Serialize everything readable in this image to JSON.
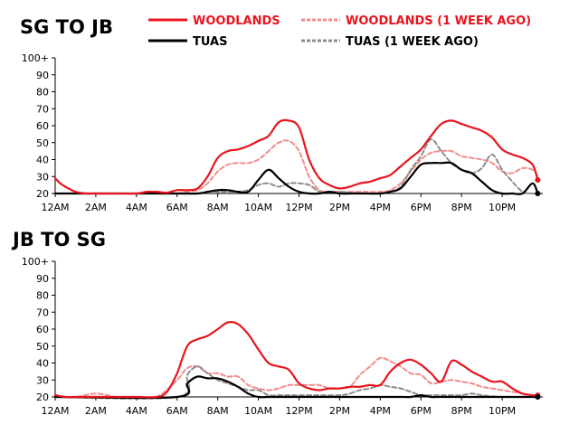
{
  "colors": {
    "woodlands": "#e8141e",
    "woodlands_prev": "#f08c8c",
    "tuas": "#000000",
    "tuas_prev": "#8c8c8c"
  },
  "legend": [
    {
      "key": "woodlands",
      "label": "WOODLANDS",
      "style": "solid"
    },
    {
      "key": "woodlands_prev",
      "label": "WOODLANDS (1 WEEK AGO)",
      "style": "dashed"
    },
    {
      "key": "tuas",
      "label": "TUAS",
      "style": "solid"
    },
    {
      "key": "tuas_prev",
      "label": "TUAS (1 WEEK AGO)",
      "style": "dashed"
    }
  ],
  "chart_data": [
    {
      "type": "line",
      "title": "SG TO JB",
      "xlabel": "",
      "ylabel": "",
      "x_ticks": [
        "12AM",
        "2AM",
        "4AM",
        "6AM",
        "8AM",
        "10AM",
        "12PM",
        "2PM",
        "4PM",
        "6PM",
        "8PM",
        "10PM"
      ],
      "y_ticks": [
        "20",
        "30",
        "40",
        "50",
        "60",
        "70",
        "80",
        "90",
        "100+"
      ],
      "xlim": [
        0,
        24
      ],
      "ylim": [
        20,
        100
      ],
      "series": [
        {
          "name": "WOODLANDS",
          "key": "woodlands",
          "dashed": false,
          "x": [
            0,
            0.25,
            0.5,
            1,
            1.5,
            2,
            3,
            4,
            4.5,
            5,
            5.5,
            6,
            6.5,
            7,
            7.5,
            8,
            8.5,
            9,
            9.5,
            10,
            10.5,
            11,
            11.5,
            12,
            12.5,
            13,
            13.5,
            14,
            14.5,
            15,
            15.5,
            16,
            16.5,
            17,
            17.5,
            18,
            18.5,
            19,
            19.5,
            20,
            20.5,
            21,
            21.5,
            22,
            22.5,
            23,
            23.5,
            23.75
          ],
          "y": [
            29,
            26,
            24,
            21,
            20,
            20,
            20,
            20,
            21,
            21,
            20.5,
            22,
            22,
            23,
            30,
            41,
            45,
            46,
            48,
            51,
            54,
            62,
            63,
            59,
            40,
            29,
            25,
            23,
            24,
            26,
            27,
            29,
            31,
            36,
            41,
            46,
            54,
            61,
            63,
            61,
            59,
            57,
            53,
            46,
            43,
            41,
            37,
            28
          ]
        },
        {
          "name": "WOODLANDS (1 WEEK AGO)",
          "key": "woodlands_prev",
          "dashed": true,
          "x": [
            0,
            1,
            2,
            3,
            4,
            5,
            6,
            6.5,
            7,
            7.5,
            8,
            8.5,
            9,
            9.5,
            10,
            10.5,
            11,
            11.5,
            12,
            12.5,
            13,
            13.5,
            14,
            15,
            16,
            16.5,
            17,
            17.5,
            18,
            18.5,
            19,
            19.5,
            20,
            20.5,
            21,
            21.5,
            22,
            22.5,
            23,
            23.5,
            23.75
          ],
          "y": [
            20,
            20,
            20,
            20,
            20,
            20,
            20,
            21,
            22,
            26,
            33,
            37,
            38,
            38,
            40,
            45,
            50,
            51,
            45,
            30,
            22,
            21,
            21,
            21,
            21,
            22,
            26,
            33,
            40,
            44,
            45,
            45,
            42,
            41,
            40,
            38,
            33,
            32,
            35,
            34,
            30
          ]
        },
        {
          "name": "TUAS",
          "key": "tuas",
          "dashed": false,
          "x": [
            0,
            6,
            7,
            7.5,
            8,
            8.5,
            9,
            9.5,
            10,
            10.5,
            11,
            11.5,
            12,
            12.5,
            13,
            13.5,
            14,
            15,
            16,
            16.5,
            17,
            17.5,
            18,
            18.5,
            19,
            19.5,
            20,
            20.5,
            21,
            21.5,
            22,
            22.5,
            23,
            23.5,
            23.75
          ],
          "y": [
            20,
            20,
            20,
            21,
            22,
            22,
            21,
            21,
            28,
            34,
            29,
            24,
            21,
            20,
            20,
            21,
            20,
            20,
            20,
            21,
            23,
            30,
            37,
            38,
            38,
            38,
            34,
            32,
            27,
            22,
            20,
            20,
            20,
            26,
            20
          ]
        },
        {
          "name": "TUAS (1 WEEK AGO)",
          "key": "tuas_prev",
          "dashed": true,
          "x": [
            0,
            6,
            7,
            7.5,
            8,
            8.5,
            9,
            9.5,
            10,
            10.5,
            11,
            11.5,
            12,
            12.5,
            13,
            13.5,
            14,
            15,
            16,
            16.5,
            17,
            17.5,
            18,
            18.5,
            19,
            19.5,
            20,
            20.5,
            21,
            21.5,
            22,
            22.5,
            23,
            23.5,
            23.75
          ],
          "y": [
            20,
            20,
            20,
            21,
            21,
            21,
            21,
            22,
            25,
            26,
            24,
            26,
            26,
            25,
            21,
            21,
            21,
            20,
            20,
            21,
            24,
            34,
            42,
            52,
            45,
            38,
            34,
            32,
            35,
            43,
            34,
            27,
            21,
            20,
            20
          ]
        }
      ]
    },
    {
      "type": "line",
      "title": "JB TO SG",
      "xlabel": "",
      "ylabel": "",
      "x_ticks": [
        "12AM",
        "2AM",
        "4AM",
        "6AM",
        "8AM",
        "10AM",
        "12PM",
        "2PM",
        "4PM",
        "6PM",
        "8PM",
        "10PM"
      ],
      "y_ticks": [
        "20",
        "30",
        "40",
        "50",
        "60",
        "70",
        "80",
        "90",
        "100+"
      ],
      "xlim": [
        0,
        24
      ],
      "ylim": [
        20,
        100
      ],
      "series": [
        {
          "name": "WOODLANDS",
          "key": "woodlands",
          "dashed": false,
          "x": [
            0,
            0.5,
            1,
            2,
            3,
            4,
            5,
            5.5,
            6,
            6.5,
            7,
            7.5,
            8,
            8.5,
            9,
            9.5,
            10,
            10.5,
            11,
            11.5,
            12,
            12.5,
            13,
            13.5,
            14,
            14.5,
            15,
            15.5,
            16,
            16.5,
            17,
            17.5,
            18,
            18.5,
            19,
            19.5,
            20,
            20.5,
            21,
            21.5,
            22,
            22.5,
            23,
            23.5,
            23.75
          ],
          "y": [
            21,
            20,
            20,
            20,
            20,
            20,
            20,
            23,
            34,
            50,
            54,
            56,
            60,
            64,
            63,
            57,
            48,
            40,
            38,
            36,
            28,
            25,
            24,
            25,
            25,
            26,
            26,
            27,
            27,
            35,
            40,
            42,
            39,
            34,
            29,
            41,
            39,
            35,
            32,
            29,
            29,
            25,
            22,
            21,
            21
          ]
        },
        {
          "name": "WOODLANDS (1 WEEK AGO)",
          "key": "woodlands_prev",
          "dashed": true,
          "x": [
            0,
            1,
            2,
            3,
            4,
            5,
            6,
            6.5,
            7,
            7.5,
            8,
            8.5,
            9,
            9.5,
            10,
            10.5,
            11,
            11.5,
            12,
            12.5,
            13,
            13.5,
            14,
            14.5,
            15,
            15.5,
            16,
            16.5,
            17,
            17.5,
            18,
            18.5,
            19,
            19.5,
            20,
            20.5,
            21,
            21.5,
            22,
            22.5,
            23,
            23.5,
            23.75
          ],
          "y": [
            20,
            20,
            22,
            20,
            20,
            20,
            30,
            37,
            38,
            34,
            34,
            32,
            32,
            27,
            25,
            24,
            25,
            27,
            27,
            27,
            27,
            25,
            25,
            26,
            33,
            38,
            43,
            41,
            38,
            34,
            33,
            28,
            29,
            30,
            29,
            28,
            26,
            25,
            24,
            23,
            22,
            21,
            21
          ]
        },
        {
          "name": "TUAS",
          "key": "tuas",
          "dashed": false,
          "x": [
            0,
            6,
            6.5,
            7,
            7.5,
            8,
            8.5,
            9,
            9.5,
            10,
            10.5,
            11,
            12,
            13,
            14,
            15,
            16,
            17,
            17.5,
            18,
            18.5,
            19,
            20,
            21,
            22,
            23,
            23.75
          ],
          "y": [
            20,
            20,
            28,
            32,
            31,
            31,
            29,
            26,
            22,
            20,
            20,
            20,
            20,
            20,
            20,
            20,
            20,
            20,
            20,
            21,
            20,
            20,
            20,
            20,
            20,
            20,
            20
          ]
        },
        {
          "name": "TUAS (1 WEEK AGO)",
          "key": "tuas_prev",
          "dashed": true,
          "x": [
            0,
            6,
            6.5,
            7,
            7.5,
            8,
            8.5,
            9,
            9.5,
            10,
            10.5,
            11,
            11.5,
            12,
            13,
            14,
            14.5,
            15,
            15.5,
            16,
            16.5,
            17,
            17.5,
            18,
            18.5,
            19,
            19.5,
            20,
            20.5,
            21,
            22,
            23,
            23.75
          ],
          "y": [
            20,
            20,
            33,
            38,
            34,
            30,
            28,
            26,
            24,
            24,
            21,
            21,
            21,
            21,
            21,
            21,
            22,
            24,
            25,
            27,
            26,
            25,
            23,
            21,
            21,
            21,
            21,
            21,
            22,
            21,
            20,
            20,
            20
          ]
        }
      ]
    }
  ]
}
